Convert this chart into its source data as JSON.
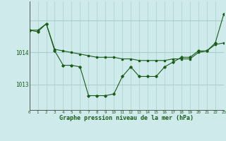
{
  "line1_x": [
    0,
    1,
    2,
    3,
    4,
    5,
    6,
    7,
    8,
    9,
    10,
    11,
    12,
    13,
    14,
    15,
    16,
    17,
    18,
    19,
    20,
    21,
    22,
    23
  ],
  "line1_y": [
    1014.7,
    1014.7,
    1014.9,
    1014.1,
    1014.05,
    1014.0,
    1013.95,
    1013.9,
    1013.85,
    1013.85,
    1013.85,
    1013.8,
    1013.8,
    1013.75,
    1013.75,
    1013.75,
    1013.75,
    1013.8,
    1013.8,
    1013.8,
    1014.0,
    1014.05,
    1014.25,
    1014.3
  ],
  "line2_x": [
    0,
    1,
    2,
    3,
    4,
    5,
    6,
    7,
    8,
    9,
    10,
    11,
    12,
    13,
    14,
    15,
    16,
    17,
    18,
    19,
    20,
    21,
    22,
    23
  ],
  "line2_y": [
    1014.7,
    1014.65,
    1014.9,
    1014.05,
    1013.6,
    1013.6,
    1013.55,
    1012.65,
    1012.65,
    1012.65,
    1012.7,
    1013.25,
    1013.55,
    1013.25,
    1013.25,
    1013.25,
    1013.55,
    1013.7,
    1013.85,
    1013.85,
    1014.05,
    1014.05,
    1014.3,
    1015.2
  ],
  "line_color": "#1a5c1a",
  "bg_color": "#ceeaea",
  "grid_color": "#aacece",
  "xlabel": "Graphe pression niveau de la mer (hPa)",
  "yticks": [
    1013,
    1014
  ],
  "ylim": [
    1012.2,
    1015.6
  ],
  "xlim": [
    0,
    23
  ]
}
